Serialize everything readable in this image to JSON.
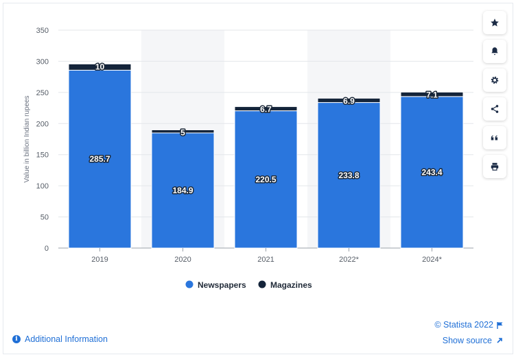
{
  "chart_data": {
    "type": "bar",
    "stacked": true,
    "categories": [
      "2019",
      "2020",
      "2021",
      "2022*",
      "2024*"
    ],
    "series": [
      {
        "name": "Newspapers",
        "values": [
          285.7,
          184.9,
          220.5,
          233.8,
          243.4
        ],
        "color": "#2a76dd"
      },
      {
        "name": "Magazines",
        "values": [
          10,
          5,
          6.7,
          6.9,
          7.1
        ],
        "color": "#14243a"
      }
    ],
    "data_labels": {
      "Newspapers": [
        "285.7",
        "184.9",
        "220.5",
        "233.8",
        "243.4"
      ],
      "Magazines": [
        "10",
        "5",
        "6.7",
        "6.9",
        "7.1"
      ]
    },
    "ylabel": "Value in billion Indian rupees",
    "ylim": [
      0,
      350
    ],
    "yticks": [
      0,
      50,
      100,
      150,
      200,
      250,
      300,
      350
    ],
    "grid": true,
    "shaded_columns": [
      1,
      3
    ],
    "legend_position": "bottom"
  },
  "footer": {
    "additional_info": "Additional Information",
    "copyright": "© Statista 2022",
    "show_source": "Show source"
  },
  "toolbar": {
    "icons": [
      "star-icon",
      "bell-icon",
      "gear-icon",
      "share-icon",
      "quote-icon",
      "print-icon"
    ]
  },
  "colors": {
    "link": "#1f6fd6",
    "accent_bar": "#2a76dd",
    "dark_bar": "#14243a",
    "shade": "#f5f6f8"
  }
}
